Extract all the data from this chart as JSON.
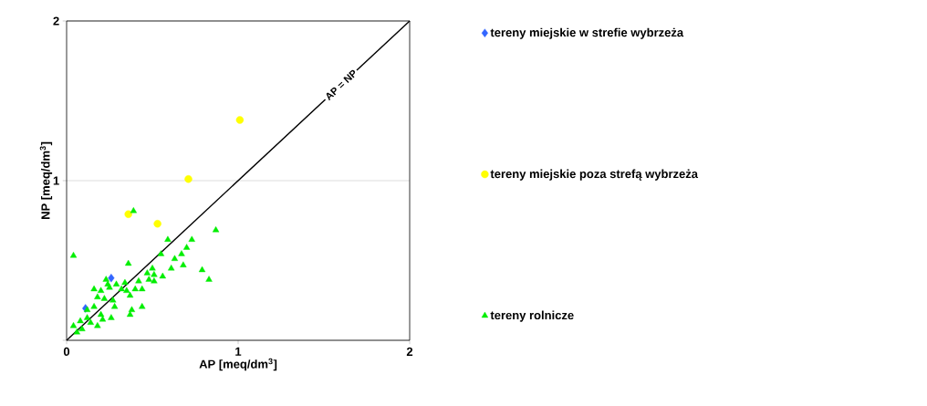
{
  "chart_data": {
    "type": "scatter",
    "xlabel": "AP [meq/dm$^{3}$]",
    "ylabel": "NP [meq/dm$^{3}$]",
    "xlim": [
      0,
      2
    ],
    "ylim": [
      0,
      2
    ],
    "xticks": [
      0,
      1,
      2
    ],
    "yticks": [
      {
        "value": 0,
        "label": null
      },
      1,
      2
    ],
    "grid": "y",
    "legend": "right",
    "annotations": [
      {
        "text": "AP = NP",
        "x": 1.6,
        "y": 1.6
      }
    ],
    "series": [
      {
        "name": "tereny miejskie w strefie wybrzeża",
        "color": "#3366ff",
        "marker": "diamond",
        "x": [
          0.26,
          0.11
        ],
        "values": [
          0.39,
          0.2
        ]
      },
      {
        "name": "tereny miejskie poza strefą wybrzeża",
        "color": "#ffff00",
        "marker": "circle",
        "x": [
          1.01,
          0.71,
          0.36,
          0.53
        ],
        "values": [
          1.38,
          1.01,
          0.79,
          0.73
        ]
      },
      {
        "name": "tereny rolnicze",
        "color": "#00ee00",
        "marker": "triangle",
        "x": [
          0.39,
          0.87,
          0.04,
          0.59,
          0.73,
          0.7,
          0.67,
          0.63,
          0.68,
          0.61,
          0.55,
          0.36,
          0.79,
          0.83,
          0.5,
          0.47,
          0.51,
          0.56,
          0.48,
          0.51,
          0.42,
          0.34,
          0.44,
          0.4,
          0.37,
          0.23,
          0.29,
          0.16,
          0.2,
          0.25,
          0.32,
          0.35,
          0.18,
          0.22,
          0.27,
          0.16,
          0.28,
          0.44,
          0.38,
          0.37,
          0.26,
          0.12,
          0.2,
          0.08,
          0.14,
          0.18,
          0.04,
          0.09,
          0.06,
          0.12,
          0.21,
          0.24
        ],
        "values": [
          0.81,
          0.69,
          0.53,
          0.63,
          0.63,
          0.58,
          0.54,
          0.51,
          0.47,
          0.45,
          0.54,
          0.48,
          0.44,
          0.38,
          0.45,
          0.42,
          0.41,
          0.4,
          0.38,
          0.37,
          0.37,
          0.36,
          0.32,
          0.32,
          0.28,
          0.38,
          0.35,
          0.32,
          0.31,
          0.33,
          0.32,
          0.31,
          0.27,
          0.26,
          0.25,
          0.21,
          0.21,
          0.21,
          0.19,
          0.16,
          0.14,
          0.19,
          0.16,
          0.12,
          0.11,
          0.09,
          0.09,
          0.07,
          0.05,
          0.14,
          0.13,
          0.35
        ]
      },
      {
        "type": "line",
        "color": "#000000",
        "marker": "none",
        "x": [
          0,
          2
        ],
        "values": [
          0,
          2
        ]
      }
    ]
  }
}
